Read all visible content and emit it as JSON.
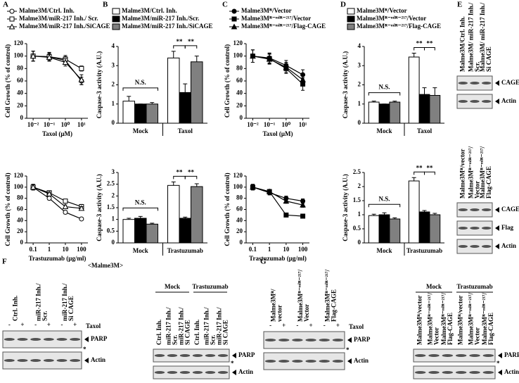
{
  "panels": [
    "A",
    "B",
    "C",
    "D",
    "E",
    "F",
    "G"
  ],
  "chart_data": [
    {
      "type": "line",
      "x": [
        0.01,
        0.1,
        1,
        10
      ],
      "xscale": "log",
      "xlim": [
        0.004,
        25
      ],
      "xticks": [
        {
          "value": 0.01,
          "label": "10⁻²"
        },
        {
          "value": 0.1,
          "label": "10⁻¹"
        },
        {
          "value": 1,
          "label": "10⁰"
        },
        {
          "value": 10,
          "label": "10¹"
        }
      ],
      "xlabel": "Taxol (μM)",
      "ylabel": "Cell Growth (% of control)",
      "ylim": [
        0,
        120
      ],
      "yticks": [
        0,
        20,
        40,
        60,
        80,
        100,
        120
      ],
      "series": [
        {
          "name": "Malme3M/Ctrl. Inh.",
          "color": "#000000",
          "marker": "circle",
          "filled": false,
          "values": [
            100,
            99,
            93,
            60
          ],
          "errors": [
            8,
            7,
            6,
            6
          ]
        },
        {
          "name": "Malme3M/miR-217 Inh./ Scr.",
          "color": "#000000",
          "marker": "square",
          "filled": false,
          "values": [
            100,
            99,
            95,
            80
          ],
          "errors": [
            8,
            6,
            6,
            4
          ]
        },
        {
          "name": "Malme3M/miR-217 Inh./SiCAGE",
          "color": "#000000",
          "marker": "triangle",
          "filled": false,
          "values": [
            100,
            98,
            90,
            62
          ],
          "errors": [
            8,
            6,
            6,
            8
          ]
        }
      ]
    },
    {
      "type": "line",
      "x": [
        0.1,
        1,
        10,
        100
      ],
      "xscale": "log",
      "xlim": [
        0.04,
        250
      ],
      "xticks": [
        0.1,
        1,
        10,
        100
      ],
      "xlabel": "Trastuzumab (μg/ml)",
      "ylabel": "Cell Growth (% of control)",
      "ylim": [
        0,
        120
      ],
      "yticks": [
        0,
        20,
        40,
        60,
        80,
        100,
        120
      ],
      "series": [
        {
          "color": "#000000",
          "marker": "circle",
          "filled": false,
          "values": [
            100,
            80,
            55,
            43
          ],
          "errors": [
            5,
            3,
            3,
            2
          ]
        },
        {
          "color": "#000000",
          "marker": "square",
          "filled": false,
          "values": [
            100,
            90,
            75,
            65
          ],
          "errors": [
            5,
            3,
            3,
            4
          ]
        },
        {
          "color": "#000000",
          "marker": "triangle",
          "filled": false,
          "values": [
            100,
            88,
            65,
            62
          ],
          "errors": [
            5,
            3,
            3,
            3
          ]
        }
      ]
    },
    {
      "type": "bar",
      "categories": [
        "Mock",
        "Taxol"
      ],
      "ylabel": "Caspase-3 activity (A.U.)",
      "ylim": [
        0,
        4
      ],
      "yticks": [
        0,
        1,
        2,
        3,
        4
      ],
      "annotations": [
        "N.S.",
        "**",
        "**"
      ],
      "series": [
        {
          "name": "Malme3M/Ctrl. Inh.",
          "color": "#ffffff",
          "values": [
            1.15,
            3.4
          ],
          "errors": [
            0.25,
            0.35
          ]
        },
        {
          "name": "Malme3M/miR-217 Inh./Scr.",
          "color": "#000000",
          "values": [
            1.0,
            1.6
          ],
          "errors": [
            0,
            0.45
          ]
        },
        {
          "name": "Malme3M/miR-217 Inh./SiCAGE",
          "color": "#808080",
          "values": [
            1.0,
            3.2
          ],
          "errors": [
            0.08,
            0.3
          ]
        }
      ]
    },
    {
      "type": "bar",
      "categories": [
        "Mock",
        "Trastuzumab"
      ],
      "ylabel": "Caspase-3 activity (A.U.)",
      "ylim": [
        0,
        3
      ],
      "yticks": [
        0,
        0.5,
        1,
        1.5,
        2,
        2.5,
        3
      ],
      "annotations": [
        "N.S.",
        "**",
        "**"
      ],
      "series": [
        {
          "color": "#ffffff",
          "values": [
            1.0,
            2.45
          ],
          "errors": [
            0.05,
            0.15
          ]
        },
        {
          "color": "#000000",
          "values": [
            1.05,
            1.05
          ],
          "errors": [
            0.08,
            0.05
          ]
        },
        {
          "color": "#808080",
          "values": [
            0.8,
            2.4
          ],
          "errors": [
            0.04,
            0.12
          ]
        }
      ]
    },
    {
      "type": "line",
      "x": [
        0.01,
        0.1,
        1,
        10
      ],
      "xscale": "log",
      "xlim": [
        0.004,
        25
      ],
      "xticks": [
        {
          "value": 0.01,
          "label": "10⁻²"
        },
        {
          "value": 0.1,
          "label": "10⁻¹"
        },
        {
          "value": 1,
          "label": "10⁰"
        },
        {
          "value": 10,
          "label": "10¹"
        }
      ],
      "xlabel": "Taxol (μM)",
      "ylabel": "Cell Growth (% of control)",
      "ylim": [
        0,
        120
      ],
      "yticks": [
        0,
        20,
        40,
        60,
        80,
        100,
        120
      ],
      "series": [
        {
          "name": "Malme3Mᴿ/Vector",
          "color": "#000000",
          "marker": "circle",
          "filled": true,
          "values": [
            100,
            97,
            85,
            70
          ],
          "errors": [
            10,
            8,
            8,
            8
          ]
        },
        {
          "name": "Malme3Mᴿ⁻ᵐⁱᴿ⁻²¹⁷/Vector",
          "color": "#000000",
          "marker": "square",
          "filled": true,
          "values": [
            100,
            96,
            80,
            55
          ],
          "errors": [
            10,
            8,
            8,
            10
          ]
        },
        {
          "name": "Malme3Mᴿ⁻ᵐⁱᴿ⁻²¹⁷/Flag-CAGE",
          "color": "#000000",
          "marker": "triangle",
          "filled": true,
          "values": [
            100,
            95,
            82,
            62
          ],
          "errors": [
            10,
            8,
            8,
            8
          ]
        }
      ]
    },
    {
      "type": "line",
      "x": [
        0.1,
        1,
        10,
        100
      ],
      "xscale": "log",
      "xlim": [
        0.04,
        250
      ],
      "xticks": [
        0.1,
        1,
        10,
        100
      ],
      "xlabel": "Trastuzumab (μg/ml)",
      "ylabel": "Cell Growth (% of control)",
      "ylim": [
        0,
        120
      ],
      "yticks": [
        0,
        20,
        40,
        60,
        80,
        100,
        120
      ],
      "series": [
        {
          "color": "#000000",
          "marker": "circle",
          "filled": true,
          "values": [
            100,
            90,
            80,
            75
          ],
          "errors": [
            5,
            4,
            4,
            4
          ]
        },
        {
          "color": "#000000",
          "marker": "square",
          "filled": true,
          "values": [
            100,
            92,
            50,
            48
          ],
          "errors": [
            5,
            4,
            2,
            2
          ]
        },
        {
          "color": "#000000",
          "marker": "triangle",
          "filled": true,
          "values": [
            100,
            92,
            75,
            68
          ],
          "errors": [
            5,
            4,
            4,
            4
          ]
        }
      ]
    },
    {
      "type": "bar",
      "categories": [
        "Mock",
        "Taxol"
      ],
      "ylabel": "Caspase-3 activity (A.U.)",
      "ylim": [
        0,
        4
      ],
      "yticks": [
        0,
        1,
        2,
        3,
        4
      ],
      "annotations": [
        "N.S.",
        "**",
        "**"
      ],
      "series": [
        {
          "name": "Malme3Mᴿ/Vector",
          "color": "#ffffff",
          "values": [
            1.1,
            3.45
          ],
          "errors": [
            0.05,
            0.2
          ]
        },
        {
          "name": "Malme3Mᴿ⁻ᵐⁱᴿ⁻²¹⁷/Vector",
          "color": "#000000",
          "values": [
            1.0,
            1.5
          ],
          "errors": [
            0,
            0.35
          ]
        },
        {
          "name": "Malme3Mᴿ⁻ᵐⁱᴿ⁻²¹⁷/Flag-CAGE",
          "color": "#808080",
          "values": [
            1.1,
            1.45
          ],
          "errors": [
            0.05,
            0.4
          ]
        }
      ]
    },
    {
      "type": "bar",
      "categories": [
        "Mock",
        "Trastuzumab"
      ],
      "ylabel": "Caspase-3 activity (A.U.)",
      "ylim": [
        0,
        2.5
      ],
      "yticks": [
        0,
        0.5,
        1,
        1.5,
        2,
        2.5
      ],
      "annotations": [
        "N.S.",
        "**",
        "**"
      ],
      "series": [
        {
          "color": "#ffffff",
          "values": [
            0.97,
            2.2
          ],
          "errors": [
            0.05,
            0.12
          ]
        },
        {
          "color": "#000000",
          "values": [
            1.0,
            1.1
          ],
          "errors": [
            0.07,
            0.05
          ]
        },
        {
          "color": "#808080",
          "values": [
            0.85,
            1.0
          ],
          "errors": [
            0.04,
            0.05
          ]
        }
      ]
    }
  ],
  "blots": [
    {
      "columns": [
        [
          "Malme3M/Ctrl. Inh."
        ],
        [
          "Malme3M/ miR-217 Inh./",
          "Scr."
        ],
        [
          "Malme3M/ miR-217 Inh./",
          "Si CAGE"
        ]
      ],
      "rows": [
        "CAGE",
        "Actin"
      ]
    },
    {
      "columns": [
        [
          "Malme3Mᴿ/vector"
        ],
        [
          "Malme3Mᴿ⁻ᵐⁱᴿ⁻²¹⁷/",
          "Vector"
        ],
        [
          "Malme3Mᴿ⁻ᵐⁱᴿ⁻²¹⁷/",
          "Flag-CAGE"
        ]
      ],
      "rows": [
        "CAGE",
        "Flag",
        "Actin"
      ]
    },
    {
      "title": "<Malme3M>",
      "columns": [
        [
          "Ctrl. Inh."
        ],
        [
          "miR-217 Inh./",
          "Scr."
        ],
        [
          "miR-217 Inh./",
          "Si CAGE"
        ]
      ],
      "lanes": [
        "-",
        "+",
        "-",
        "+",
        "-",
        "+"
      ],
      "treatment": "Taxol",
      "rows": [
        "PARP",
        "Actin"
      ],
      "marker": "*"
    },
    {
      "groups": [
        "Mock",
        "Trastuzumab"
      ],
      "columns": [
        [
          "Ctrl. Inh."
        ],
        [
          "miR-217 Inh./",
          "Scr."
        ],
        [
          "miR-217 Inh./",
          "Si CAGE"
        ],
        [
          "Ctrl. Inh."
        ],
        [
          "miR-217 Inh./",
          "Scr."
        ],
        [
          "miR-217 Inh./",
          "Si CAGE"
        ]
      ],
      "rows": [
        "PARP",
        "Actin"
      ],
      "marker": "*"
    },
    {
      "columns": [
        [
          "Malme3Mᴿ/",
          "vector"
        ],
        [
          "Malme3Mᴿ⁻ᵐⁱᴿ⁻²¹⁷/",
          "Vector"
        ],
        [
          "Malme3Mᴿ⁻ᵐⁱᴿ⁻²¹⁷/",
          "Flag-CAGE"
        ]
      ],
      "lanes": [
        "-",
        "+",
        "-",
        "+",
        "-",
        "+"
      ],
      "treatment": "Taxol",
      "rows": [
        "PARP",
        "Actin"
      ],
      "marker": "*"
    },
    {
      "groups": [
        "Mock",
        "Trastuzumab"
      ],
      "columns": [
        [
          "Malme3Mᴿ/vector"
        ],
        [
          "Malme3Mᴿ⁻ᵐⁱᴿ⁻²¹⁷/",
          "Vector"
        ],
        [
          "Malme3Mᴿ⁻ᵐⁱᴿ⁻²¹⁷/",
          "Flag-CAGE"
        ],
        [
          "Malme3Mᴿ/vector"
        ],
        [
          "Malme3Mᴿ⁻ᵐⁱᴿ⁻²¹⁷/",
          "Vector"
        ],
        [
          "Malme3Mᴿ⁻ᵐⁱᴿ⁻²¹⁷/",
          "Flag-CAGE"
        ]
      ],
      "rows": [
        "PARP",
        "Actin"
      ],
      "marker": "*"
    }
  ]
}
